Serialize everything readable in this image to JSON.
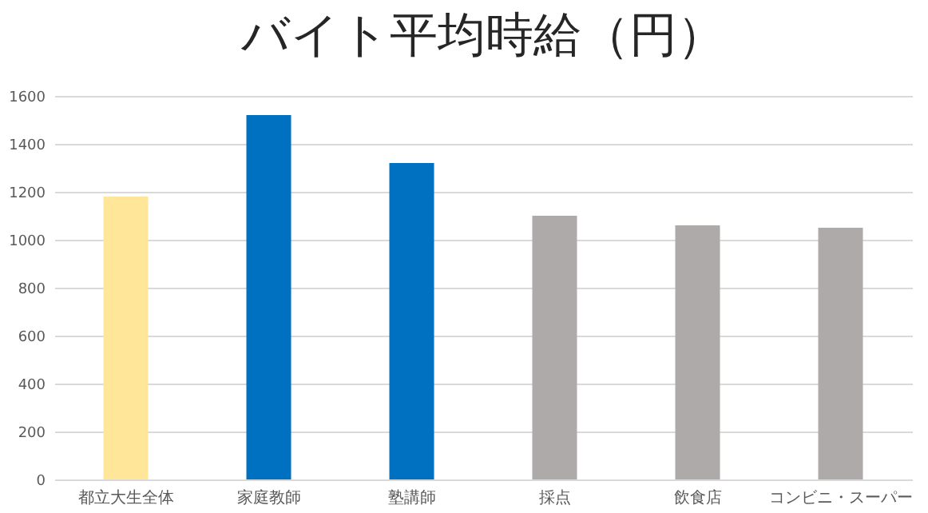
{
  "chart_data": {
    "type": "bar",
    "title": "バイト平均時給（円）",
    "categories": [
      "都立大生全体",
      "家庭教師",
      "塾講師",
      "採点",
      "飲食店",
      "コンビニ・スーパー"
    ],
    "values": [
      1180,
      1520,
      1320,
      1100,
      1060,
      1050
    ],
    "colors": [
      "#ffe699",
      "#0070c0",
      "#0070c0",
      "#aeaaaa",
      "#aeaaaa",
      "#aeaaaa"
    ],
    "ylim": [
      0,
      1600
    ],
    "yticks": [
      0,
      200,
      400,
      600,
      800,
      1000,
      1200,
      1400,
      1600
    ],
    "grid": "y",
    "legend": false
  }
}
